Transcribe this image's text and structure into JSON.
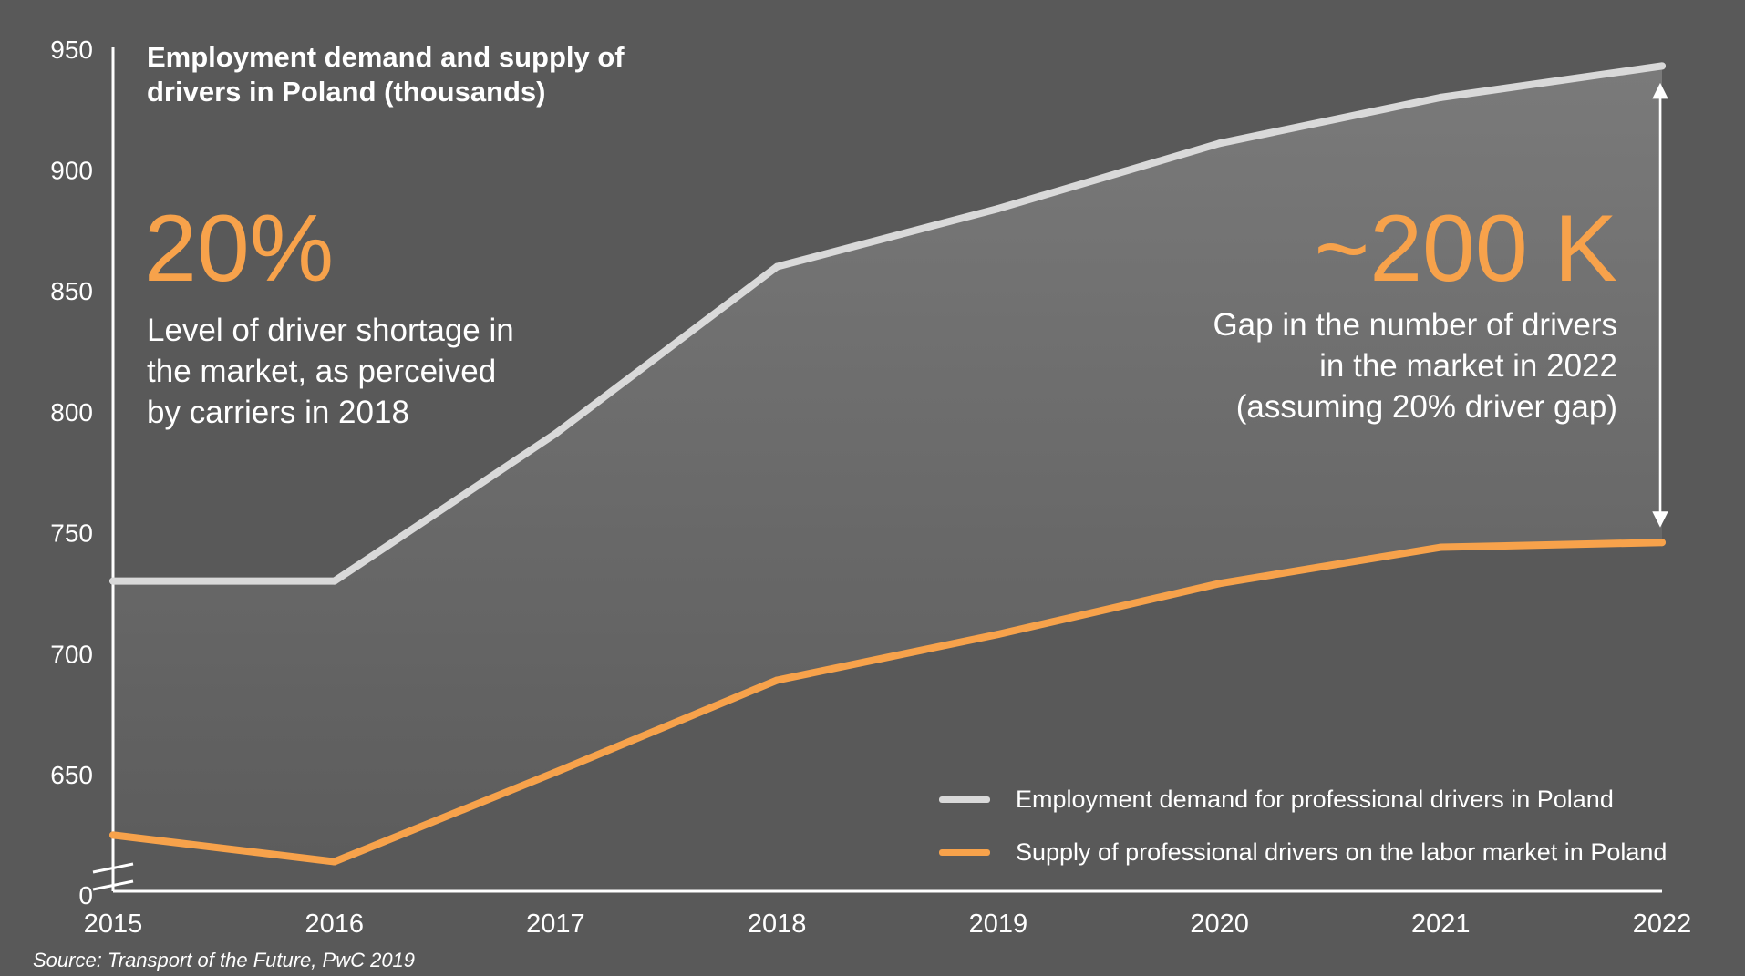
{
  "chart_data": {
    "type": "area",
    "title": "Employment demand and supply of drivers in Poland (thousands)",
    "x": [
      "2015",
      "2016",
      "2017",
      "2018",
      "2019",
      "2020",
      "2021",
      "2022"
    ],
    "series": [
      {
        "name": "Employment demand for professional drivers in Poland",
        "values": [
          730,
          730,
          791,
          860,
          884,
          911,
          930,
          943
        ],
        "color": "#d9d9d9"
      },
      {
        "name": "Supply of professional drivers on the labor market in Poland",
        "values": [
          625,
          614,
          651,
          689,
          708,
          729,
          744,
          746
        ],
        "color": "#f7a24b"
      }
    ],
    "y_ticks": [
      "0",
      "650",
      "700",
      "750",
      "800",
      "850",
      "900",
      "950"
    ],
    "ylim": [
      600,
      950
    ],
    "y_axis_break": true,
    "annotations": {
      "left_big": "20%",
      "left_text": "Level of driver shortage in the market, as perceived by carriers in 2018",
      "right_big": "~200 K",
      "right_text_lines": [
        "Gap in the number of drivers",
        "in the market in 2022",
        "(assuming 20% driver gap)"
      ]
    },
    "legend_position": "bottom-right"
  },
  "source": "Source: Transport of the Future, PwC 2019",
  "colors": {
    "background": "#595959",
    "demand": "#d9d9d9",
    "supply": "#f7a24b",
    "text": "#ffffff"
  }
}
